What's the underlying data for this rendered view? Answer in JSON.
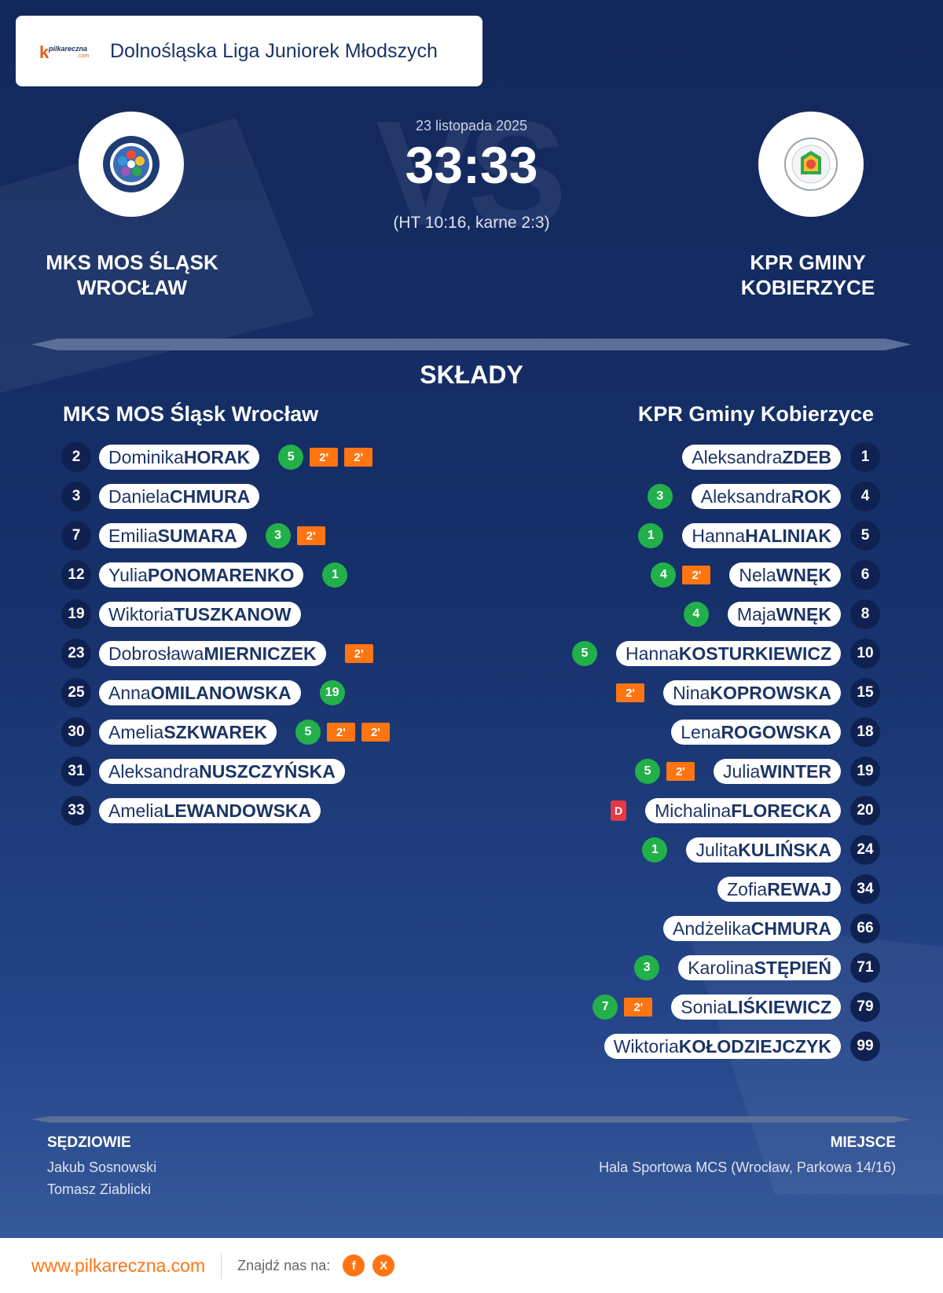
{
  "header": {
    "brand_word": "pilkareczna",
    "brand_suffix": ".com",
    "league": "Dolnośląska Liga Juniorek Młodszych"
  },
  "match": {
    "date": "23 listopada 2025",
    "score": "33:33",
    "details": "(HT 10:16, karne 2:3)",
    "vs_text": "VS"
  },
  "home": {
    "name_upper": "MKS MOS ŚLĄSK WROCŁAW",
    "name": "MKS MOS Śląsk Wrocław",
    "players": [
      {
        "num": "2",
        "first": "Dominika",
        "last": "HORAK",
        "goals": "5",
        "pens": 2
      },
      {
        "num": "3",
        "first": "Daniela",
        "last": "CHMURA"
      },
      {
        "num": "7",
        "first": "Emilia",
        "last": "SUMARA",
        "goals": "3",
        "pens": 1
      },
      {
        "num": "12",
        "first": "Yulia",
        "last": "PONOMARENKO",
        "goals": "1"
      },
      {
        "num": "19",
        "first": "Wiktoria",
        "last": "TUSZKANOW"
      },
      {
        "num": "23",
        "first": "Dobrosława",
        "last": "MIERNICZEK",
        "pens": 1
      },
      {
        "num": "25",
        "first": "Anna",
        "last": "OMILANOWSKA",
        "goals": "19"
      },
      {
        "num": "30",
        "first": "Amelia",
        "last": "SZKWAREK",
        "goals": "5",
        "pens": 2
      },
      {
        "num": "31",
        "first": "Aleksandra",
        "last": "NUSZCZYŃSKA"
      },
      {
        "num": "33",
        "first": "Amelia",
        "last": "LEWANDOWSKA"
      }
    ]
  },
  "away": {
    "name_upper": "KPR GMINY KOBIERZYCE",
    "name": "KPR Gminy Kobierzyce",
    "players": [
      {
        "num": "1",
        "first": "Aleksandra",
        "last": "ZDEB"
      },
      {
        "num": "4",
        "first": "Aleksandra",
        "last": "ROK",
        "goals": "3"
      },
      {
        "num": "5",
        "first": "Hanna",
        "last": "HALINIAK",
        "goals": "1"
      },
      {
        "num": "6",
        "first": "Nela",
        "last": "WNĘK",
        "goals": "4",
        "pens": 1
      },
      {
        "num": "8",
        "first": "Maja",
        "last": "WNĘK",
        "goals": "4"
      },
      {
        "num": "10",
        "first": "Hanna",
        "last": "KOSTURKIEWICZ",
        "goals": "5"
      },
      {
        "num": "15",
        "first": "Nina",
        "last": "KOPROWSKA",
        "pens": 1
      },
      {
        "num": "18",
        "first": "Lena",
        "last": "ROGOWSKA"
      },
      {
        "num": "19",
        "first": "Julia",
        "last": "WINTER",
        "goals": "5",
        "pens": 1
      },
      {
        "num": "20",
        "first": "Michalina",
        "last": "FLORECKA",
        "dq": true
      },
      {
        "num": "24",
        "first": "Julita",
        "last": "KULIŃSKA",
        "goals": "1"
      },
      {
        "num": "34",
        "first": "Zofia",
        "last": "REWAJ"
      },
      {
        "num": "66",
        "first": "Andżelika",
        "last": "CHMURA"
      },
      {
        "num": "71",
        "first": "Karolina",
        "last": "STĘPIEŃ",
        "goals": "3"
      },
      {
        "num": "79",
        "first": "Sonia",
        "last": "LIŚKIEWICZ",
        "goals": "7",
        "pens": 1
      },
      {
        "num": "99",
        "first": "Wiktoria",
        "last": "KOŁODZIEJCZYK"
      }
    ]
  },
  "labels": {
    "lineups": "SKŁADY",
    "penalty": "2'",
    "disqualification": "D",
    "referees": "SĘDZIOWIE",
    "venue": "MIEJSCE"
  },
  "referees": [
    "Jakub Sosnowski",
    "Tomasz Ziablicki"
  ],
  "venue": "Hala Sportowa MCS (Wrocław, Parkowa 14/16)",
  "footer": {
    "url": "www.pilkareczna.com",
    "find_us": "Znajdź nas na:",
    "facebook": "f",
    "x": "X"
  },
  "colors": {
    "background": "#16306a",
    "goal": "#22b04b",
    "penalty": "#ff7512",
    "disqualification": "#e63946",
    "number_badge": "#0f2150",
    "accent": "#ff7512"
  }
}
